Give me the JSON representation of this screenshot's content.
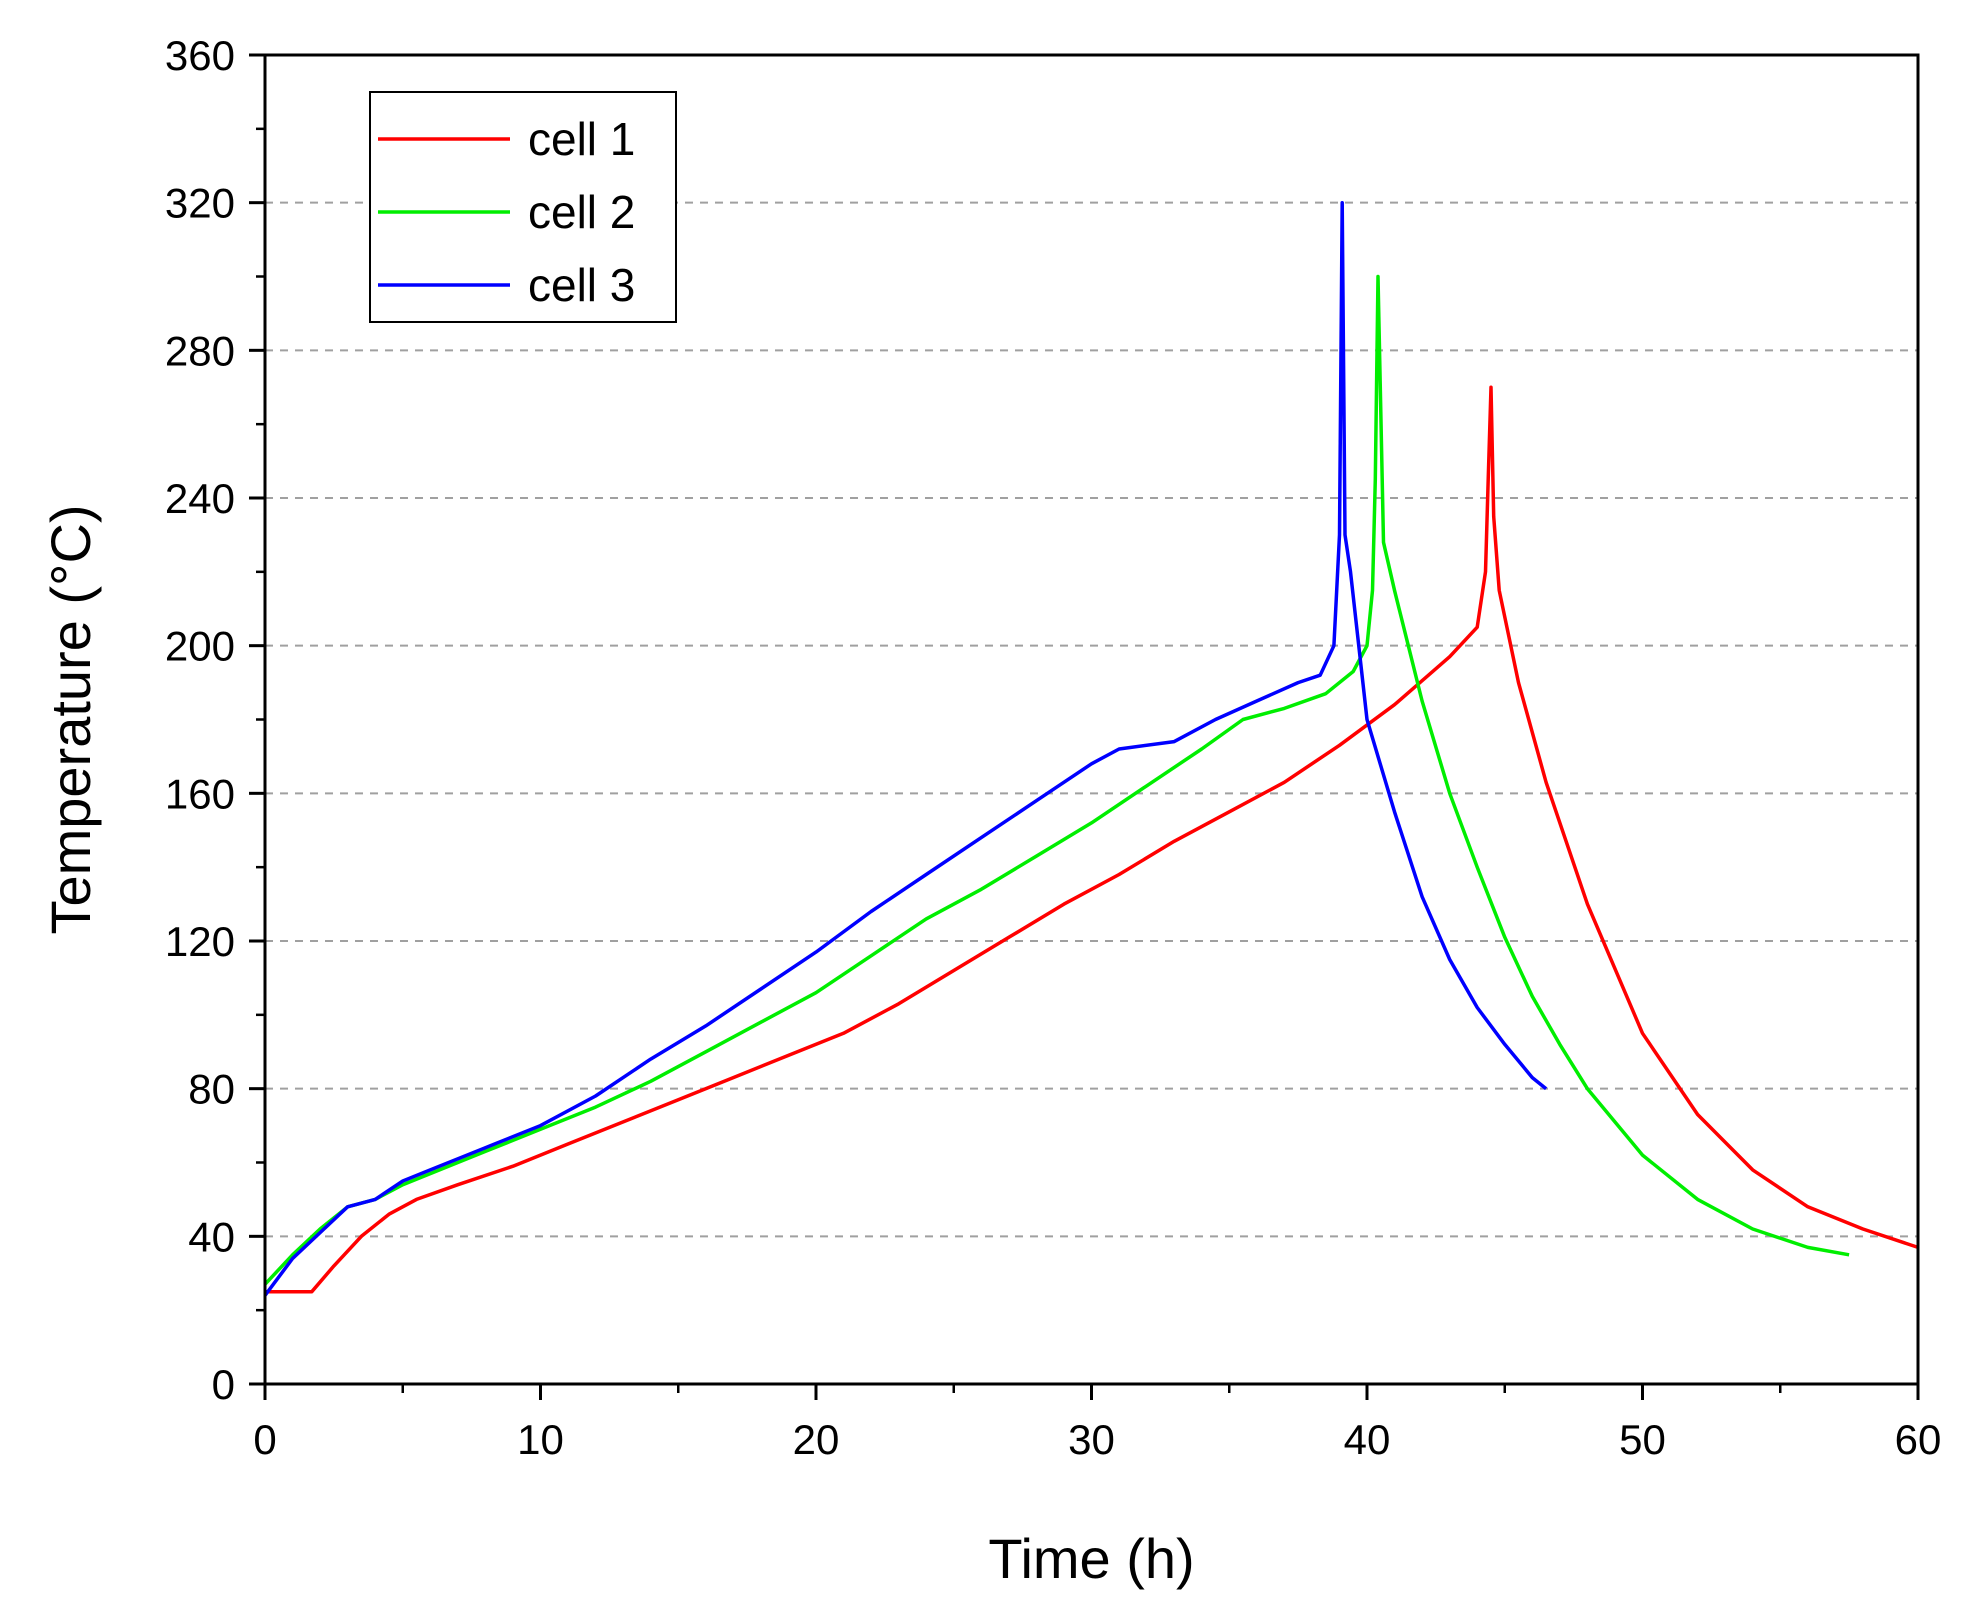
{
  "chart_data": {
    "type": "line",
    "title": "",
    "xlabel": "Time (h)",
    "ylabel": "Temperature (°C)",
    "xlim": [
      0,
      60
    ],
    "ylim": [
      0,
      360
    ],
    "xticks": [
      0,
      10,
      20,
      30,
      40,
      50,
      60
    ],
    "yticks": [
      0,
      40,
      80,
      120,
      160,
      200,
      240,
      280,
      320,
      360
    ],
    "xtick_labels": [
      "0",
      "10",
      "20",
      "30",
      "40",
      "50",
      "60"
    ],
    "ytick_labels": [
      "0",
      "40",
      "80",
      "120",
      "160",
      "200",
      "240",
      "280",
      "320",
      "360"
    ],
    "grid": "horizontal dashed",
    "legend_position": "top-left",
    "series": [
      {
        "name": "cell 1",
        "color": "#ff0000",
        "x": [
          0,
          1.7,
          2.5,
          3.5,
          4.5,
          5.5,
          7,
          9,
          11,
          13,
          15,
          17,
          19,
          21,
          23,
          25,
          27,
          29,
          31,
          33,
          35,
          37,
          39,
          41,
          43,
          44.0,
          44.3,
          44.4,
          44.5,
          44.6,
          44.8,
          45.5,
          46.5,
          48,
          50,
          52,
          54,
          56,
          58,
          60
        ],
        "y": [
          25,
          25,
          32,
          40,
          46,
          50,
          54,
          59,
          65,
          71,
          77,
          83,
          89,
          95,
          103,
          112,
          121,
          130,
          138,
          147,
          155,
          163,
          173,
          184,
          197,
          205,
          220,
          245,
          270,
          235,
          215,
          190,
          163,
          130,
          95,
          73,
          58,
          48,
          42,
          37
        ]
      },
      {
        "name": "cell 2",
        "color": "#00ee00",
        "x": [
          0,
          1,
          2,
          3,
          4,
          5,
          6,
          8,
          10,
          12,
          14,
          16,
          18,
          20,
          22,
          24,
          26,
          28,
          30,
          32,
          34,
          35.5,
          37,
          38.5,
          39.5,
          40.0,
          40.2,
          40.3,
          40.4,
          40.6,
          41,
          42,
          43,
          44,
          45,
          46,
          47,
          48,
          50,
          52,
          54,
          56,
          57.5
        ],
        "y": [
          27,
          35,
          42,
          48,
          50,
          54,
          57,
          63,
          69,
          75,
          82,
          90,
          98,
          106,
          116,
          126,
          134,
          143,
          152,
          162,
          172,
          180,
          183,
          187,
          193,
          200,
          215,
          245,
          300,
          228,
          215,
          185,
          160,
          140,
          121,
          105,
          92,
          80,
          62,
          50,
          42,
          37,
          35
        ]
      },
      {
        "name": "cell 3",
        "color": "#0000ff",
        "x": [
          0,
          1,
          2,
          3,
          4,
          5,
          6,
          8,
          10,
          12,
          14,
          16,
          18,
          20,
          22,
          24,
          26,
          28,
          30,
          31,
          33,
          34.5,
          36,
          37.5,
          38.3,
          38.8,
          39.0,
          39.1,
          39.2,
          39.4,
          40,
          41,
          42,
          43,
          44,
          45,
          46,
          46.5
        ],
        "y": [
          24,
          34,
          41,
          48,
          50,
          55,
          58,
          64,
          70,
          78,
          88,
          97,
          107,
          117,
          128,
          138,
          148,
          158,
          168,
          172,
          174,
          180,
          185,
          190,
          192,
          200,
          230,
          320,
          230,
          220,
          180,
          155,
          132,
          115,
          102,
          92,
          83,
          80
        ]
      }
    ]
  }
}
